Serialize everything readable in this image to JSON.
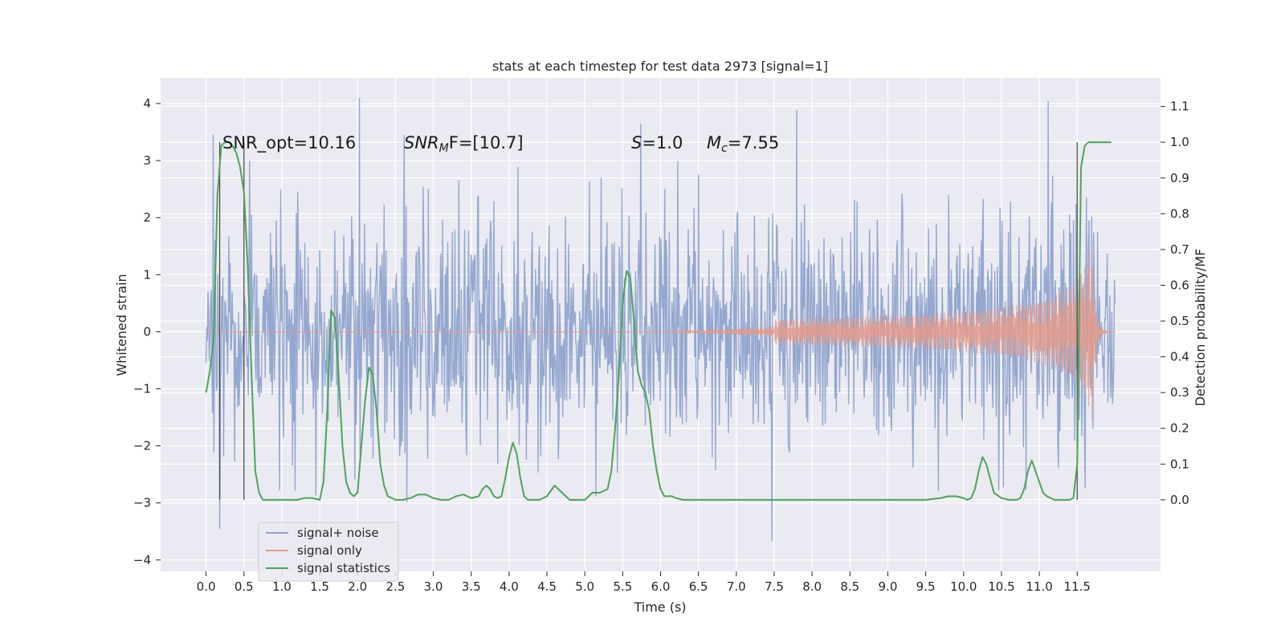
{
  "chart_data": {
    "type": "line",
    "title": "stats at each timestep for test data 2973 [signal=1]",
    "xlabel": "Time (s)",
    "ylabel": "Whitened strain",
    "y2label": "Detection probability/MF",
    "xlim": [
      -0.6,
      12.6
    ],
    "ylim": [
      -4.2,
      4.45
    ],
    "y2lim": [
      -0.2,
      1.18
    ],
    "xticks": [
      "0.0",
      "0.5",
      "1.0",
      "1.5",
      "2.0",
      "2.5",
      "3.0",
      "3.5",
      "4.0",
      "4.5",
      "5.0",
      "5.5",
      "6.0",
      "6.5",
      "7.0",
      "7.5",
      "8.0",
      "8.5",
      "9.0",
      "9.5",
      "10.0",
      "10.5",
      "11.0",
      "11.5"
    ],
    "yticks": [
      "4",
      "3",
      "2",
      "1",
      "0",
      "−1",
      "−2",
      "−3",
      "−4"
    ],
    "y2ticks": [
      "1.1",
      "1.0",
      "0.9",
      "0.8",
      "0.7",
      "0.6",
      "0.5",
      "0.4",
      "0.3",
      "0.2",
      "0.1",
      "0.0"
    ],
    "grid": true,
    "legend_position": "lower-left",
    "annotations": {
      "snr_opt": "SNR_opt=10.16",
      "snr_mf_main": "SNR",
      "snr_mf_sub": "M",
      "snr_mf_tail": "F=[10.7]",
      "s_main": "S",
      "s_tail": "=1.0",
      "mc_main": "M",
      "mc_sub": "c",
      "mc_tail": "=7.55"
    },
    "vertical_markers_x": [
      0.18,
      0.5,
      11.5
    ],
    "series": [
      {
        "name": "signal+ noise",
        "color": "#8fa3cc",
        "x_range": [
          0.0,
          12.0
        ],
        "approx_amplitude_range": [
          -3.8,
          4.1
        ]
      },
      {
        "name": "signal only",
        "color": "#e39a8a",
        "x_range": [
          0.0,
          12.0
        ],
        "chirp_peak_time": 11.7,
        "chirp_peak_amplitude": 1.6
      },
      {
        "name": "signal statistics",
        "color": "#4ea35a",
        "x": [
          0.0,
          0.05,
          0.1,
          0.15,
          0.2,
          0.25,
          0.3,
          0.35,
          0.4,
          0.45,
          0.5,
          0.55,
          0.6,
          0.65,
          0.7,
          0.75,
          0.8,
          0.9,
          1.0,
          1.1,
          1.2,
          1.3,
          1.4,
          1.5,
          1.55,
          1.6,
          1.65,
          1.7,
          1.75,
          1.8,
          1.85,
          1.9,
          1.95,
          2.0,
          2.05,
          2.1,
          2.15,
          2.2,
          2.25,
          2.3,
          2.35,
          2.4,
          2.5,
          2.6,
          2.7,
          2.8,
          2.9,
          3.0,
          3.1,
          3.2,
          3.3,
          3.4,
          3.5,
          3.6,
          3.65,
          3.7,
          3.75,
          3.8,
          3.85,
          3.9,
          3.95,
          4.0,
          4.05,
          4.1,
          4.15,
          4.2,
          4.25,
          4.3,
          4.4,
          4.5,
          4.6,
          4.7,
          4.8,
          4.9,
          5.0,
          5.1,
          5.2,
          5.3,
          5.35,
          5.4,
          5.45,
          5.5,
          5.55,
          5.6,
          5.65,
          5.7,
          5.75,
          5.8,
          5.85,
          5.9,
          5.95,
          6.0,
          6.05,
          6.1,
          6.15,
          6.2,
          6.3,
          6.4,
          6.5,
          7.0,
          7.5,
          8.0,
          8.5,
          9.0,
          9.5,
          9.7,
          9.8,
          9.9,
          10.0,
          10.05,
          10.1,
          10.15,
          10.2,
          10.25,
          10.3,
          10.35,
          10.4,
          10.5,
          10.6,
          10.7,
          10.75,
          10.8,
          10.85,
          10.9,
          10.95,
          11.0,
          11.05,
          11.1,
          11.15,
          11.2,
          11.3,
          11.4,
          11.45,
          11.5,
          11.55,
          11.6,
          11.65,
          11.7,
          11.8,
          11.9,
          11.95
        ],
        "y": [
          0.3,
          0.36,
          0.45,
          0.85,
          0.99,
          1.0,
          1.0,
          0.99,
          0.97,
          0.93,
          0.86,
          0.65,
          0.35,
          0.08,
          0.02,
          0.0,
          0.0,
          0.0,
          0.0,
          0.0,
          0.0,
          0.005,
          0.005,
          0.0,
          0.05,
          0.25,
          0.53,
          0.51,
          0.35,
          0.15,
          0.05,
          0.02,
          0.01,
          0.02,
          0.15,
          0.28,
          0.37,
          0.35,
          0.25,
          0.1,
          0.04,
          0.01,
          0.0,
          0.0,
          0.005,
          0.015,
          0.015,
          0.005,
          0.0,
          0.0,
          0.01,
          0.015,
          0.005,
          0.01,
          0.03,
          0.04,
          0.03,
          0.01,
          0.005,
          0.01,
          0.06,
          0.12,
          0.16,
          0.13,
          0.06,
          0.01,
          0.0,
          0.0,
          0.0,
          0.01,
          0.04,
          0.02,
          0.0,
          0.0,
          0.0,
          0.02,
          0.02,
          0.03,
          0.08,
          0.2,
          0.35,
          0.55,
          0.64,
          0.62,
          0.5,
          0.36,
          0.32,
          0.3,
          0.25,
          0.15,
          0.08,
          0.03,
          0.01,
          0.01,
          0.01,
          0.005,
          0.0,
          0.0,
          0.0,
          0.0,
          0.0,
          0.0,
          0.0,
          0.0,
          0.0,
          0.005,
          0.01,
          0.01,
          0.005,
          0.0,
          0.005,
          0.03,
          0.08,
          0.12,
          0.1,
          0.06,
          0.02,
          0.005,
          0.0,
          0.0,
          0.005,
          0.03,
          0.08,
          0.11,
          0.08,
          0.05,
          0.02,
          0.01,
          0.005,
          0.0,
          0.0,
          0.0,
          0.005,
          0.1,
          0.93,
          0.99,
          1.0,
          1.0,
          1.0,
          1.0,
          1.0
        ]
      }
    ]
  }
}
